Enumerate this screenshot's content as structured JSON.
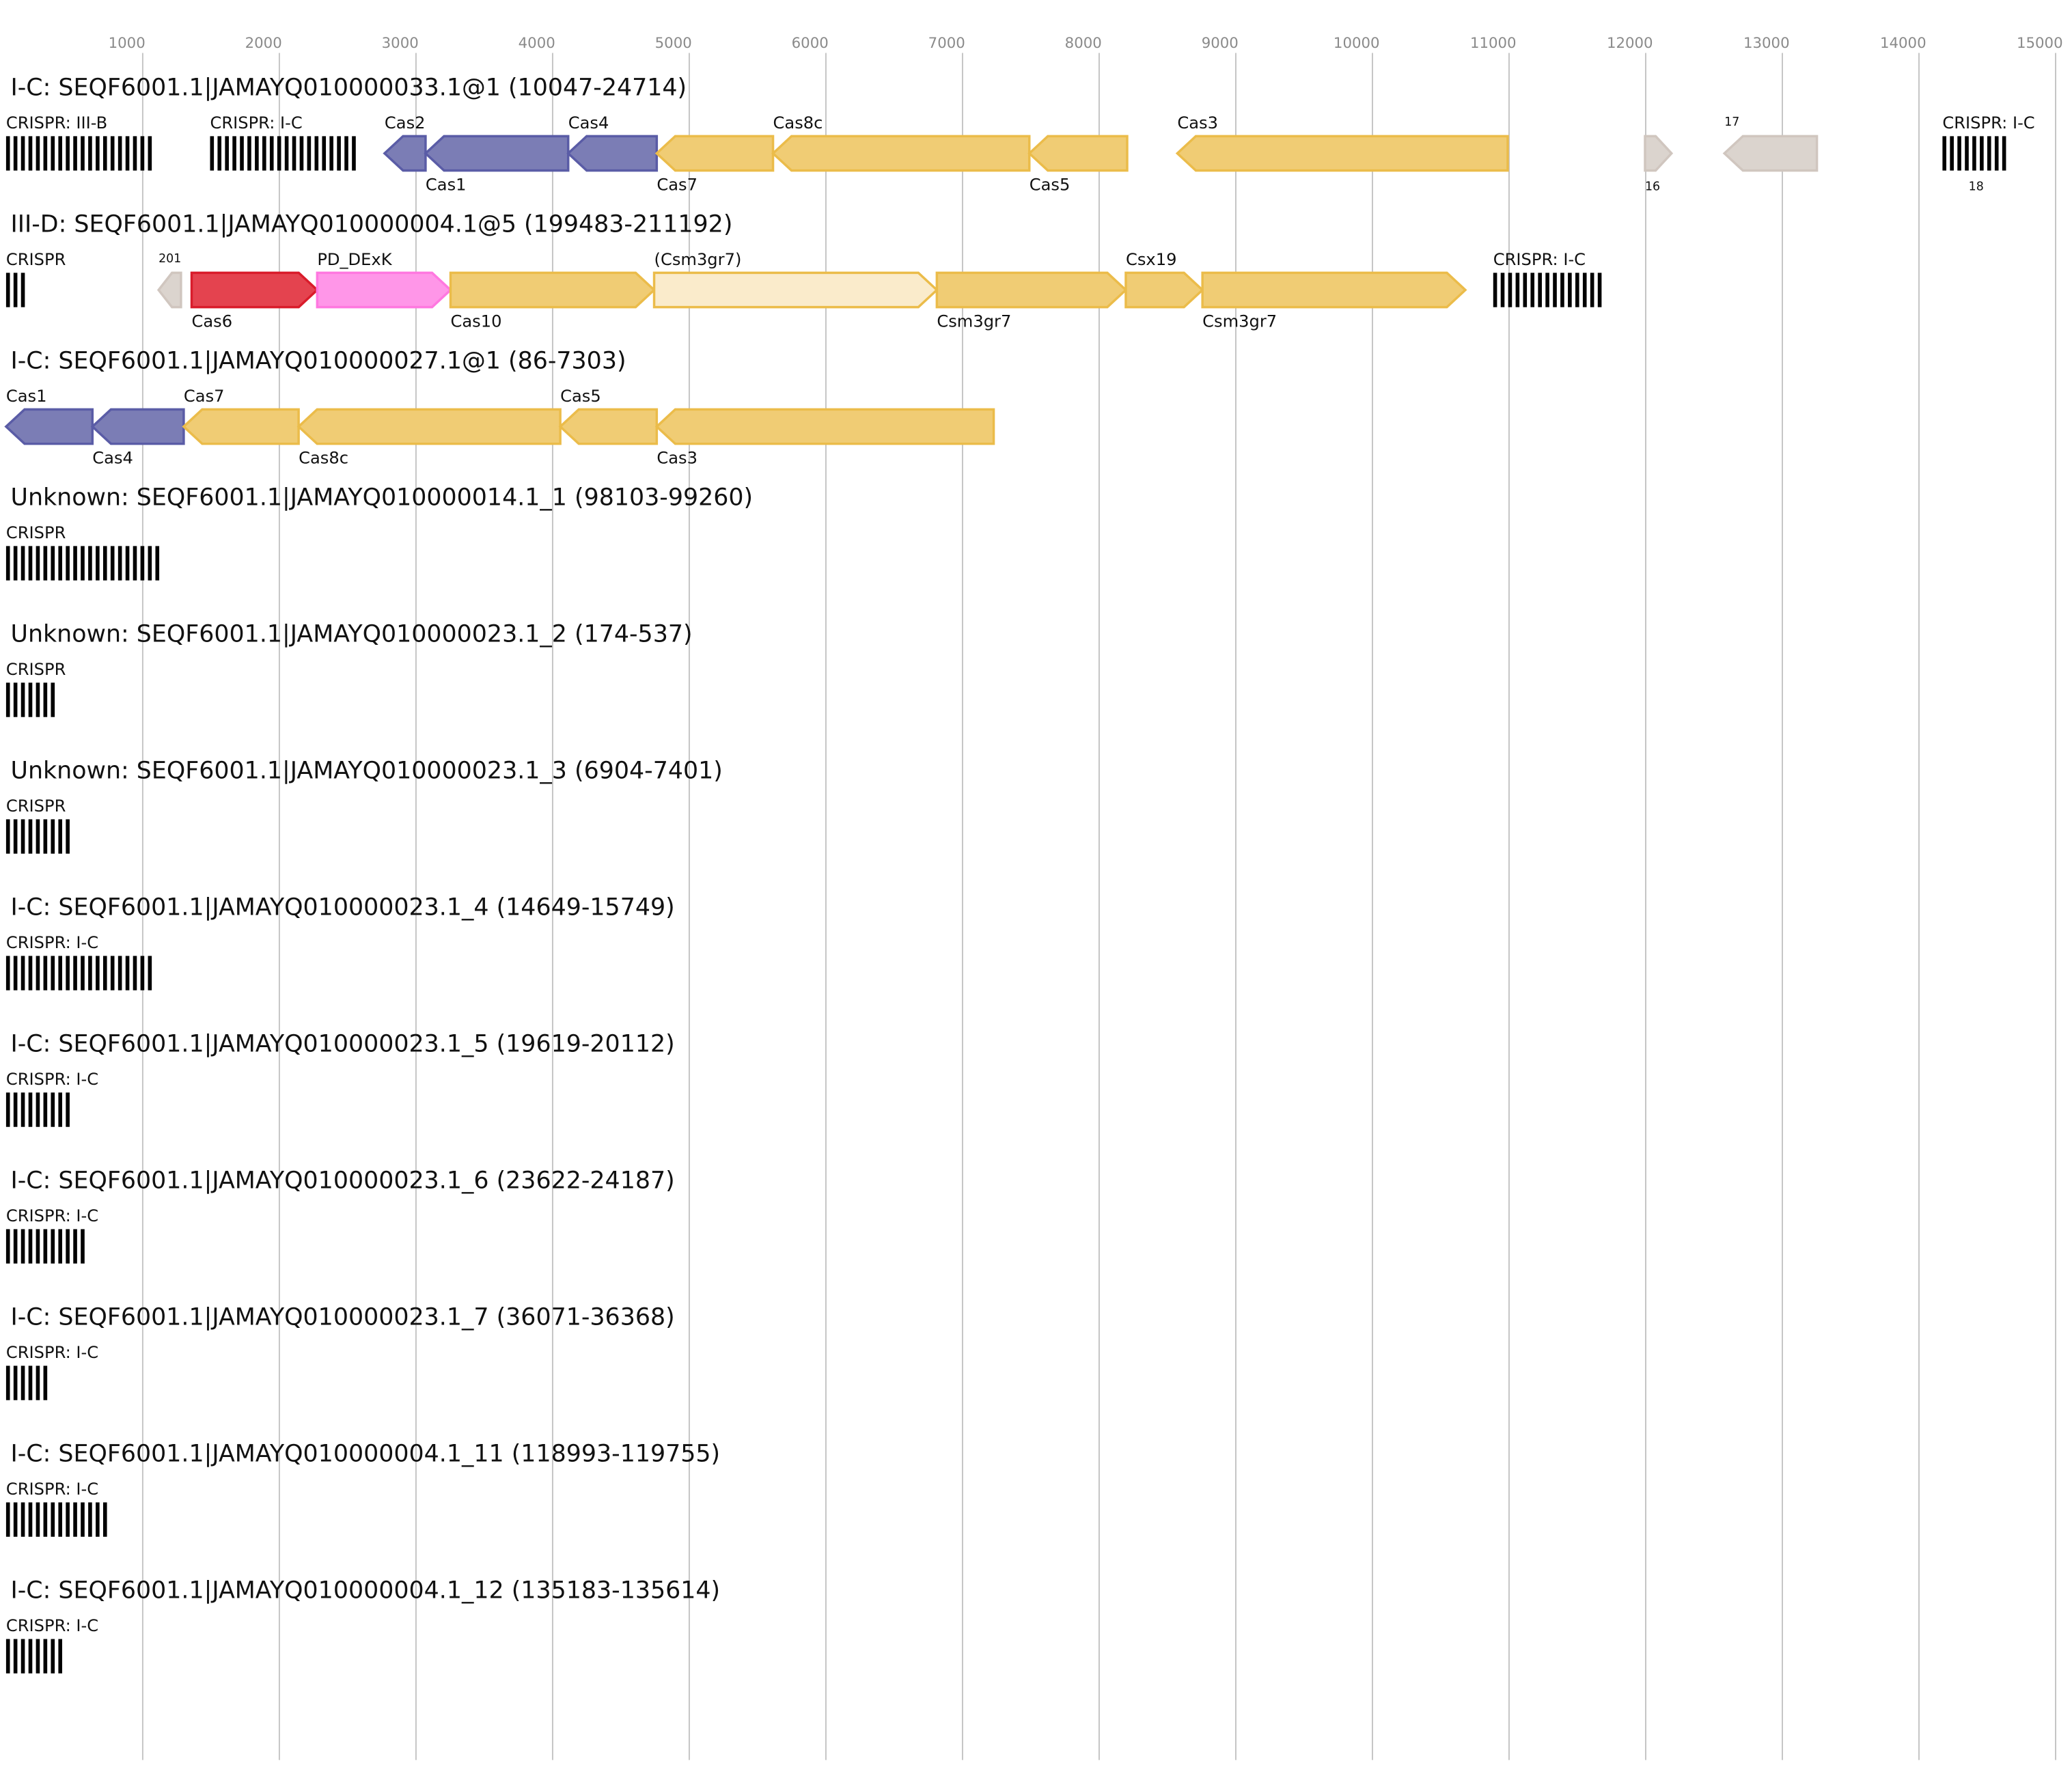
{
  "axis": {
    "range": [
      0,
      15000
    ],
    "ticks": [
      1000,
      2000,
      3000,
      4000,
      5000,
      6000,
      7000,
      8000,
      9000,
      10000,
      11000,
      12000,
      13000,
      14000,
      15000
    ]
  },
  "colors": {
    "adaptation": {
      "fill": "#7b7db5",
      "stroke": "#5a5ca6"
    },
    "effector": {
      "fill": "#f0cc74",
      "stroke": "#ebbc4a"
    },
    "effector_partial": {
      "fill": "#faebcb",
      "stroke": "#ebbc4a"
    },
    "cas6": {
      "fill": "#e4434f",
      "stroke": "#d91c2b"
    },
    "accessory": {
      "fill": "#ff96e8",
      "stroke": "#ff78e0"
    },
    "other": {
      "fill": "#dbd4ce",
      "stroke": "#d0c6bf"
    },
    "crispr": "#000000"
  },
  "tracks": [
    {
      "title": "I-C: SEQF6001.1|JAMAYQ010000033.1@1 (10047-24714)",
      "features": [
        {
          "type": "crispr",
          "name": "CRISPR: III-B",
          "start": 0,
          "end": 1097,
          "pos": "above"
        },
        {
          "type": "crispr",
          "name": "CRISPR: I-C",
          "start": 1493,
          "end": 2596,
          "pos": "above"
        },
        {
          "type": "gene",
          "name": "Cas2",
          "start": 2770,
          "end": 3070,
          "strand": -1,
          "cat": "adaptation",
          "pos": "above"
        },
        {
          "type": "gene",
          "name": "Cas1",
          "start": 3070,
          "end": 4114,
          "strand": -1,
          "cat": "adaptation",
          "pos": "below"
        },
        {
          "type": "gene",
          "name": "Cas4",
          "start": 4114,
          "end": 4762,
          "strand": -1,
          "cat": "adaptation",
          "pos": "above"
        },
        {
          "type": "gene",
          "name": "Cas7",
          "start": 4762,
          "end": 5613,
          "strand": -1,
          "cat": "effector",
          "pos": "below"
        },
        {
          "type": "gene",
          "name": "Cas8c",
          "start": 5613,
          "end": 7489,
          "strand": -1,
          "cat": "effector",
          "pos": "above"
        },
        {
          "type": "gene",
          "name": "Cas5",
          "start": 7489,
          "end": 8205,
          "strand": -1,
          "cat": "effector",
          "pos": "below"
        },
        {
          "type": "gene",
          "name": "Cas3",
          "start": 8572,
          "end": 10990,
          "strand": -1,
          "cat": "effector",
          "pos": "above"
        },
        {
          "type": "gene",
          "name": "16",
          "start": 11995,
          "end": 12189,
          "strand": 1,
          "cat": "other",
          "pos": "below"
        },
        {
          "type": "gene",
          "name": "17",
          "start": 12576,
          "end": 13253,
          "strand": -1,
          "cat": "other",
          "pos": "above"
        },
        {
          "type": "crispr",
          "name": "CRISPR: I-C",
          "id": "18",
          "start": 14172,
          "end": 14665,
          "pos": "above"
        }
      ]
    },
    {
      "title": "III-D: SEQF6001.1|JAMAYQ010000004.1@5 (199483-211192)",
      "features": [
        {
          "type": "crispr",
          "name": "CRISPR",
          "start": 0,
          "end": 168,
          "pos": "above"
        },
        {
          "type": "gene",
          "name": "201",
          "start": 1116,
          "end": 1280,
          "strand": -1,
          "cat": "other",
          "pos": "above"
        },
        {
          "type": "gene",
          "name": "Cas6",
          "start": 1358,
          "end": 2277,
          "strand": 1,
          "cat": "cas6",
          "pos": "below"
        },
        {
          "type": "gene",
          "name": "PD_DExK",
          "start": 2277,
          "end": 3253,
          "strand": 1,
          "cat": "accessory",
          "pos": "above"
        },
        {
          "type": "gene",
          "name": "Cas10",
          "start": 3253,
          "end": 4743,
          "strand": 1,
          "cat": "effector",
          "pos": "below"
        },
        {
          "type": "gene",
          "name": "(Csm3gr7)",
          "start": 4743,
          "end": 6812,
          "strand": 1,
          "cat": "effector_partial",
          "pos": "above"
        },
        {
          "type": "gene",
          "name": "Csm3gr7",
          "start": 6812,
          "end": 8195,
          "strand": 1,
          "cat": "effector",
          "pos": "below"
        },
        {
          "type": "gene",
          "name": "Csx19",
          "start": 8195,
          "end": 8756,
          "strand": 1,
          "cat": "effector",
          "pos": "above"
        },
        {
          "type": "gene",
          "name": "Csm3gr7",
          "start": 8756,
          "end": 10680,
          "strand": 1,
          "cat": "effector",
          "pos": "below"
        },
        {
          "type": "crispr",
          "name": "CRISPR: I-C",
          "start": 10884,
          "end": 11715,
          "pos": "above"
        }
      ]
    },
    {
      "title": "I-C: SEQF6001.1|JAMAYQ010000027.1@1 (86-7303)",
      "features": [
        {
          "type": "gene",
          "name": "Cas1",
          "start": 0,
          "end": 632,
          "strand": -1,
          "cat": "adaptation",
          "pos": "above"
        },
        {
          "type": "gene",
          "name": "Cas4",
          "start": 632,
          "end": 1300,
          "strand": -1,
          "cat": "adaptation",
          "pos": "below"
        },
        {
          "type": "gene",
          "name": "Cas7",
          "start": 1300,
          "end": 2141,
          "strand": -1,
          "cat": "effector",
          "pos": "above"
        },
        {
          "type": "gene",
          "name": "Cas8c",
          "start": 2141,
          "end": 4056,
          "strand": -1,
          "cat": "effector",
          "pos": "below"
        },
        {
          "type": "gene",
          "name": "Cas5",
          "start": 4056,
          "end": 4762,
          "strand": -1,
          "cat": "effector",
          "pos": "above"
        },
        {
          "type": "gene",
          "name": "Cas3",
          "start": 4762,
          "end": 7228,
          "strand": -1,
          "cat": "effector",
          "pos": "below"
        }
      ]
    },
    {
      "title": "Unknown: SEQF6001.1|JAMAYQ010000014.1_1 (98103-99260)",
      "features": [
        {
          "type": "crispr",
          "name": "CRISPR",
          "start": 0,
          "end": 1160,
          "pos": "above"
        }
      ]
    },
    {
      "title": "Unknown: SEQF6001.1|JAMAYQ010000023.1_2 (174-537)",
      "features": [
        {
          "type": "crispr",
          "name": "CRISPR",
          "start": 0,
          "end": 370,
          "pos": "above"
        }
      ]
    },
    {
      "title": "Unknown: SEQF6001.1|JAMAYQ010000023.1_3 (6904-7401)",
      "features": [
        {
          "type": "crispr",
          "name": "CRISPR",
          "start": 0,
          "end": 500,
          "pos": "above"
        }
      ]
    },
    {
      "title": "I-C: SEQF6001.1|JAMAYQ010000023.1_4 (14649-15749)",
      "features": [
        {
          "type": "crispr",
          "name": "CRISPR: I-C",
          "start": 0,
          "end": 1105,
          "pos": "above"
        }
      ]
    },
    {
      "title": "I-C: SEQF6001.1|JAMAYQ010000023.1_5 (19619-20112)",
      "features": [
        {
          "type": "crispr",
          "name": "CRISPR: I-C",
          "start": 0,
          "end": 495,
          "pos": "above"
        }
      ]
    },
    {
      "title": "I-C: SEQF6001.1|JAMAYQ010000023.1_6 (23622-24187)",
      "features": [
        {
          "type": "crispr",
          "name": "CRISPR: I-C",
          "start": 0,
          "end": 570,
          "pos": "above"
        }
      ]
    },
    {
      "title": "I-C: SEQF6001.1|JAMAYQ010000023.1_7 (36071-36368)",
      "features": [
        {
          "type": "crispr",
          "name": "CRISPR: I-C",
          "start": 0,
          "end": 300,
          "pos": "above"
        }
      ]
    },
    {
      "title": "I-C: SEQF6001.1|JAMAYQ010000004.1_11 (118993-119755)",
      "features": [
        {
          "type": "crispr",
          "name": "CRISPR: I-C",
          "start": 0,
          "end": 765,
          "pos": "above"
        }
      ]
    },
    {
      "title": "I-C: SEQF6001.1|JAMAYQ010000004.1_12 (135183-135614)",
      "features": [
        {
          "type": "crispr",
          "name": "CRISPR: I-C",
          "start": 0,
          "end": 435,
          "pos": "above"
        }
      ]
    }
  ]
}
